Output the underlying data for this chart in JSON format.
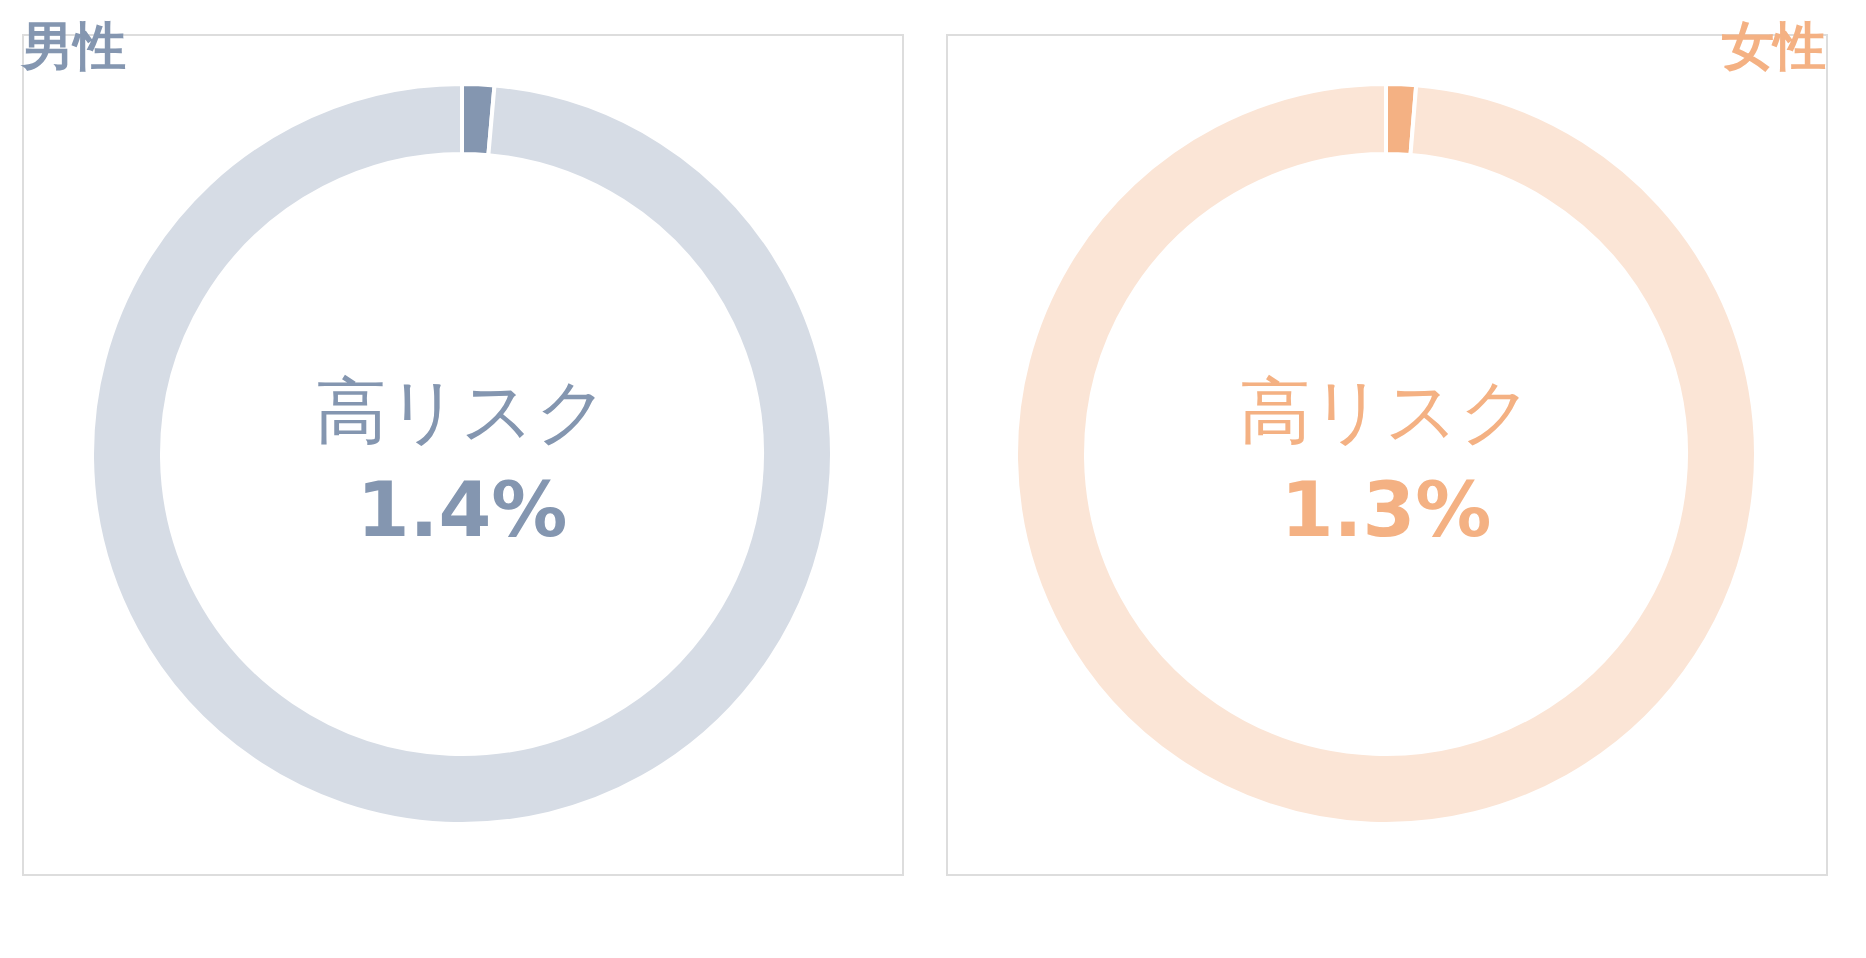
{
  "chart_data": [
    {
      "type": "donut",
      "title": "男性",
      "categories": [
        "高リスク",
        null
      ],
      "values": [
        1.4,
        98.6
      ],
      "colors": [
        "#8496b0",
        "#d6dce5"
      ],
      "value_labels": [
        "1.4%",
        null
      ]
    },
    {
      "type": "donut",
      "title": "女性",
      "categories": [
        "高リスク",
        null
      ],
      "values": [
        1.3,
        98.7
      ],
      "colors": [
        "#f4b183",
        "#fbe5d6"
      ],
      "value_labels": [
        "1.3%",
        null
      ]
    }
  ]
}
